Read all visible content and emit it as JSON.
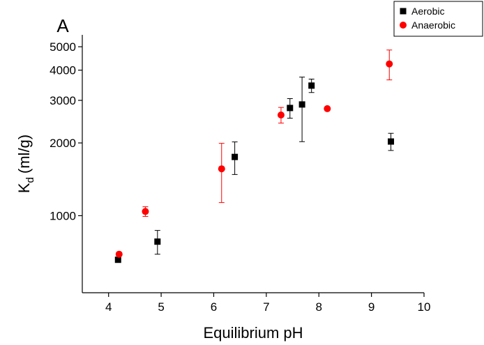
{
  "chart_data": {
    "type": "scatter",
    "title": "A",
    "xlabel": "Equilibrium pH",
    "ylabel": [
      "K",
      "d",
      "(ml/g)"
    ],
    "log_y": true,
    "xlim": [
      3.5,
      10
    ],
    "ylim": [
      480,
      5600
    ],
    "xticks": [
      4,
      5,
      6,
      7,
      8,
      9,
      10
    ],
    "yticks": [
      1000,
      2000,
      3000,
      4000,
      5000
    ],
    "legend": "top-right",
    "series": [
      {
        "name": "Aerobic",
        "color": "#000000",
        "marker": "square",
        "x": [
          4.18,
          4.93,
          6.4,
          7.45,
          7.68,
          7.86,
          9.37
        ],
        "values": [
          657,
          781,
          1750,
          2790,
          2885,
          3453,
          2027
        ],
        "errors": [
          null,
          88,
          270,
          260,
          860,
          220,
          165
        ]
      },
      {
        "name": "Anaerobic",
        "color": "#ff0000",
        "marker": "circle",
        "x": [
          4.2,
          4.7,
          6.15,
          7.28,
          8.16,
          9.34
        ],
        "values": [
          693,
          1041,
          1563,
          2610,
          2772,
          4245
        ],
        "errors": [
          null,
          48,
          430,
          195,
          null,
          600
        ]
      }
    ]
  }
}
